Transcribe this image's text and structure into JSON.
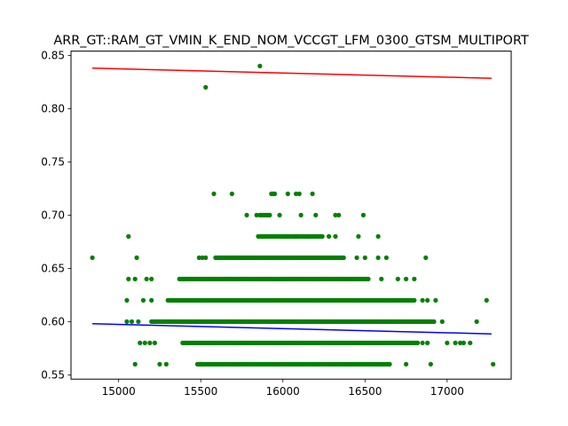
{
  "chart_data": {
    "type": "scatter",
    "title": "ARR_GT::RAM_GT_VMIN_K_END_NOM_VCCGT_LFM_0300_GTSM_MULTIPORT",
    "xlabel": "",
    "ylabel": "",
    "xlim": [
      14710,
      17390
    ],
    "ylim": [
      0.546,
      0.854
    ],
    "xticks": [
      15000,
      15500,
      16000,
      16500,
      17000
    ],
    "yticks": [
      0.55,
      0.6,
      0.65,
      0.7,
      0.75,
      0.8,
      0.85
    ],
    "xtick_labels": [
      "15000",
      "15500",
      "16000",
      "16500",
      "17000"
    ],
    "ytick_labels": [
      "0.55",
      "0.60",
      "0.65",
      "0.70",
      "0.75",
      "0.80",
      "0.85"
    ],
    "grid": false,
    "legend": "none",
    "point_color": "#008000",
    "series": [
      {
        "style": "points",
        "bands": [
          {
            "y": 0.56,
            "x_min": 15480,
            "x_max": 16650,
            "extra_x": [
              15100,
              15250,
              15290,
              15500,
              16750,
              16900,
              17280
            ]
          },
          {
            "y": 0.58,
            "x_min": 15390,
            "x_max": 16820,
            "extra_x": [
              15130,
              15160,
              15190,
              15220,
              16850,
              16880,
              17000,
              17050,
              17080,
              17100,
              17140
            ]
          },
          {
            "y": 0.6,
            "x_min": 15200,
            "x_max": 16920,
            "extra_x": [
              15050,
              15080,
              15120,
              16970,
              17180
            ]
          },
          {
            "y": 0.62,
            "x_min": 15300,
            "x_max": 16800,
            "extra_x": [
              15050,
              15150,
              15200,
              16850,
              16880,
              16930,
              17240
            ]
          },
          {
            "y": 0.64,
            "x_min": 15370,
            "x_max": 16520,
            "extra_x": [
              15060,
              15100,
              15170,
              15200,
              16600,
              16700,
              16750,
              16800
            ]
          },
          {
            "y": 0.66,
            "x_min": 15590,
            "x_max": 16370,
            "extra_x": [
              14840,
              15110,
              15490,
              15510,
              15530,
              16450,
              16500,
              16580,
              16630,
              16870
            ]
          },
          {
            "y": 0.68,
            "x_min": 15850,
            "x_max": 16240,
            "extra_x": [
              15060,
              16020,
              16080,
              16150,
              16280,
              16320,
              16460,
              16580
            ]
          },
          {
            "y": 0.7,
            "x_min": 15860,
            "x_max": 15920,
            "extra_x": [
              15780,
              15840,
              15980,
              16110,
              16200,
              16320,
              16340,
              16490
            ]
          },
          {
            "y": 0.72,
            "x_min": 15930,
            "x_max": 15950,
            "extra_x": [
              15580,
              15690,
              16030,
              16080,
              16100,
              16180
            ]
          }
        ],
        "outliers": [
          {
            "x": 15530,
            "y": 0.82
          },
          {
            "x": 15860,
            "y": 0.84
          }
        ]
      },
      {
        "style": "line",
        "color": "#ff0000",
        "x": [
          14840,
          17270
        ],
        "y": [
          0.838,
          0.8285
        ]
      },
      {
        "style": "line",
        "color": "#0000ff",
        "x": [
          14840,
          17270
        ],
        "y": [
          0.598,
          0.5885
        ]
      }
    ]
  }
}
